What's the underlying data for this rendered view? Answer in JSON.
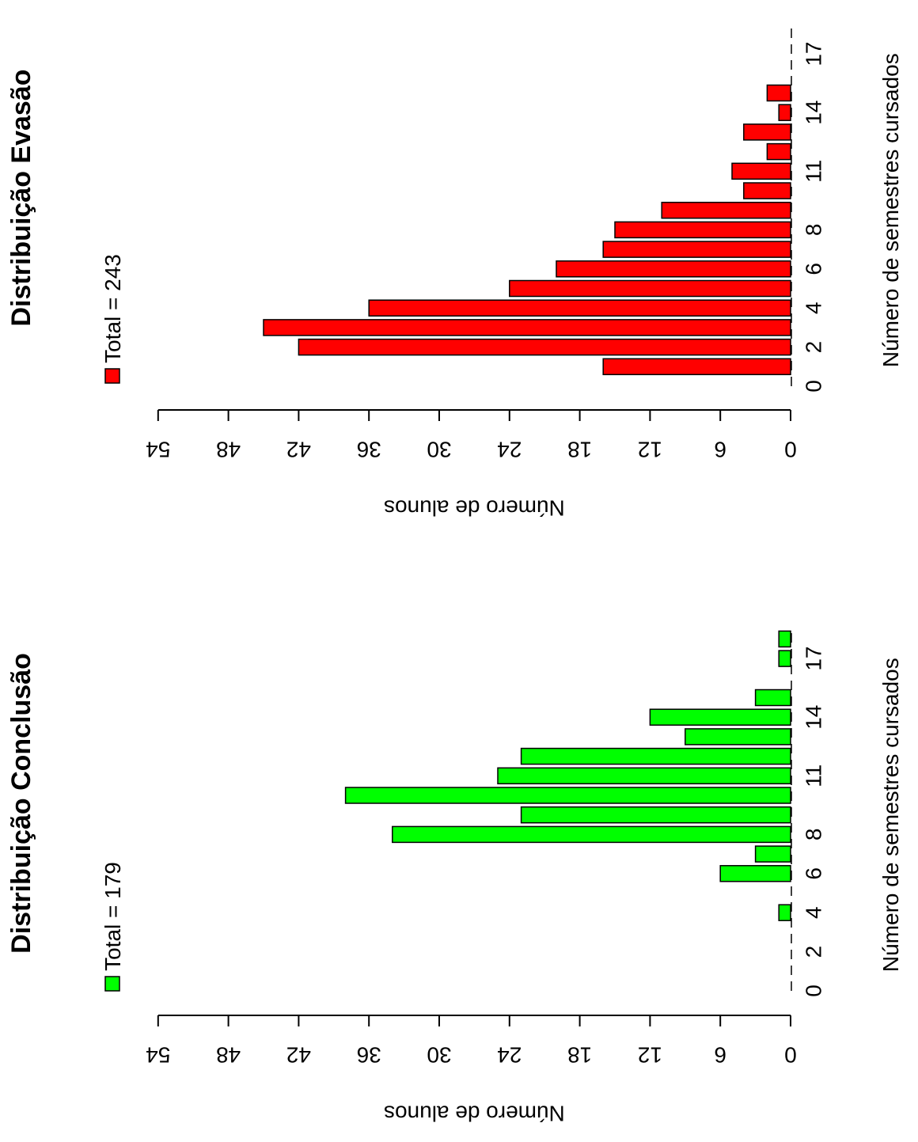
{
  "chart_data": [
    {
      "type": "bar",
      "title": "Distribuição Evasão",
      "legend": "Total = 243",
      "xlabel": "Número de semestres cursados",
      "ylabel": "Número de alunos",
      "color": "#ff0000",
      "x_range": [
        0,
        18
      ],
      "x_ticks": [
        0,
        2,
        4,
        6,
        8,
        11,
        14,
        17
      ],
      "y_range": [
        0,
        54
      ],
      "y_ticks": [
        0,
        6,
        12,
        18,
        24,
        30,
        36,
        42,
        48,
        54
      ],
      "categories": [
        1,
        2,
        3,
        4,
        5,
        6,
        7,
        8,
        9,
        10,
        11,
        12,
        13,
        14,
        15,
        16,
        17,
        18
      ],
      "values": [
        16,
        42,
        45,
        36,
        24,
        20,
        16,
        15,
        11,
        4,
        5,
        2,
        4,
        1,
        2,
        0,
        0,
        0
      ]
    },
    {
      "type": "bar",
      "title": "Distribuição Conclusão",
      "legend": "Total = 179",
      "xlabel": "Número de semestres cursados",
      "ylabel": "Número de alunos",
      "color": "#00ff00",
      "x_range": [
        0,
        18
      ],
      "x_ticks": [
        0,
        2,
        4,
        6,
        8,
        11,
        14,
        17
      ],
      "y_range": [
        0,
        54
      ],
      "y_ticks": [
        0,
        6,
        12,
        18,
        24,
        30,
        36,
        42,
        48,
        54
      ],
      "categories": [
        1,
        2,
        3,
        4,
        5,
        6,
        7,
        8,
        9,
        10,
        11,
        12,
        13,
        14,
        15,
        16,
        17,
        18
      ],
      "values": [
        0,
        0,
        0,
        1,
        0,
        6,
        3,
        34,
        23,
        38,
        25,
        23,
        9,
        12,
        3,
        0,
        1,
        1
      ]
    }
  ]
}
